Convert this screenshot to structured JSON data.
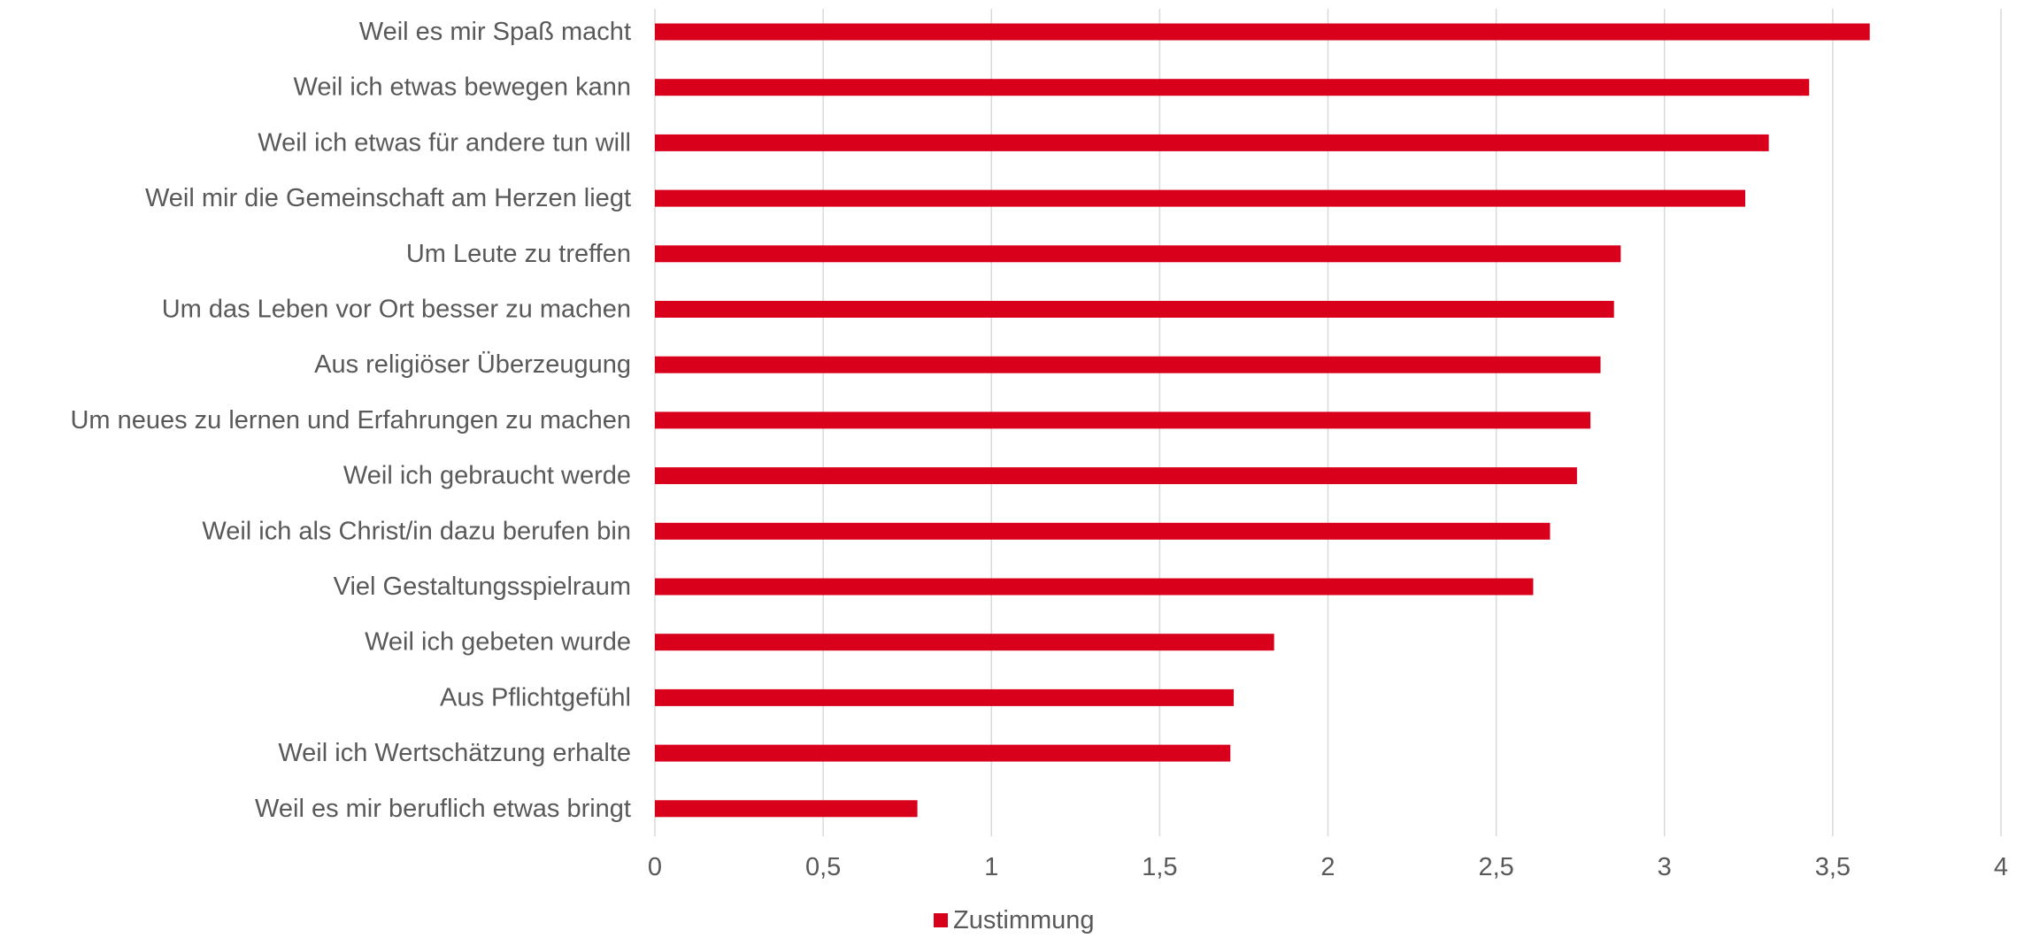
{
  "chart_data": {
    "type": "bar",
    "orientation": "horizontal",
    "categories": [
      "Weil es mir Spaß macht",
      "Weil ich etwas bewegen kann",
      "Weil ich etwas für andere tun will",
      "Weil mir die Gemeinschaft am Herzen liegt",
      "Um Leute zu treffen",
      "Um das Leben vor Ort besser zu machen",
      "Aus religiöser Überzeugung",
      "Um neues zu lernen und Erfahrungen zu machen",
      "Weil ich gebraucht werde",
      "Weil ich als Christ/in dazu berufen bin",
      "Viel Gestaltungsspielraum",
      "Weil ich gebeten wurde",
      "Aus Pflichtgefühl",
      "Weil ich Wertschätzung erhalte",
      "Weil es mir beruflich etwas bringt"
    ],
    "series": [
      {
        "name": "Zustimmung",
        "values": [
          3.61,
          3.43,
          3.31,
          3.24,
          2.87,
          2.85,
          2.81,
          2.78,
          2.74,
          2.66,
          2.61,
          1.84,
          1.72,
          1.71,
          0.78
        ]
      }
    ],
    "title": "",
    "xlabel": "",
    "ylabel": "",
    "xlim": [
      0,
      4
    ],
    "x_ticks": [
      0,
      0.5,
      1,
      1.5,
      2,
      2.5,
      3,
      3.5,
      4
    ],
    "x_tick_labels": [
      "0",
      "0,5",
      "1",
      "1,5",
      "2",
      "2,5",
      "3",
      "3,5",
      "4"
    ],
    "grid": "vertical",
    "legend": "bottom",
    "colors": {
      "bar": "#D9001B",
      "grid": "#D9D9D9",
      "text": "#595959"
    }
  }
}
